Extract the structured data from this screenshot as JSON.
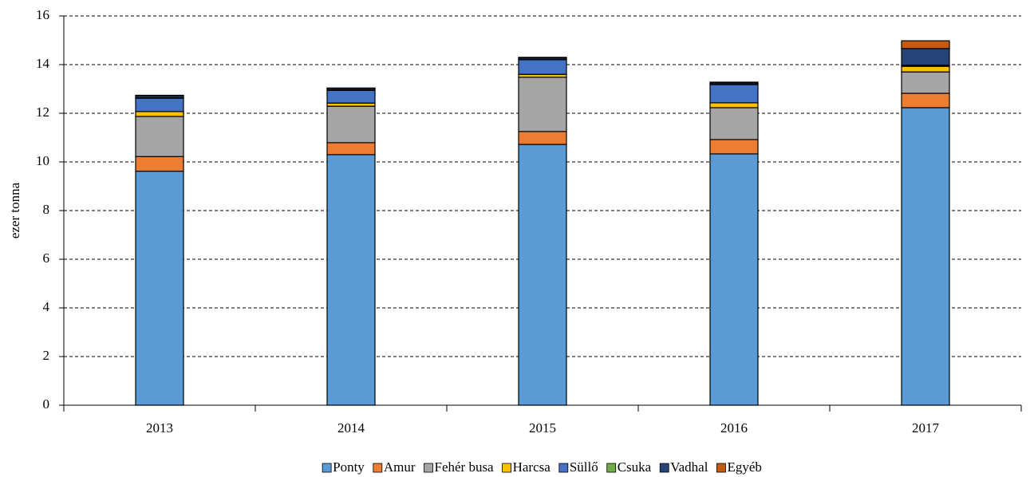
{
  "chart_data": {
    "type": "stacked_bar",
    "y_label": "ezer tonna",
    "categories": [
      "2013",
      "2014",
      "2015",
      "2016",
      "2017"
    ],
    "series": [
      {
        "name": "Ponty",
        "color": "#5b9bd5",
        "values": [
          9.62,
          10.3,
          10.72,
          10.33,
          12.23
        ]
      },
      {
        "name": "Amur",
        "color": "#ed7d31",
        "values": [
          0.6,
          0.49,
          0.53,
          0.59,
          0.59
        ]
      },
      {
        "name": "Fehér busa",
        "color": "#a5a5a5",
        "values": [
          1.65,
          1.5,
          2.23,
          1.31,
          0.88
        ]
      },
      {
        "name": "Harcsa",
        "color": "#ffc000",
        "values": [
          0.2,
          0.13,
          0.12,
          0.2,
          0.23
        ]
      },
      {
        "name": "Süllő",
        "color": "#4472c4",
        "values": [
          0.55,
          0.52,
          0.6,
          0.75,
          0.03
        ]
      },
      {
        "name": "Csuka",
        "color": "#70ad47",
        "values": [
          0.02,
          0.02,
          0.02,
          0.02,
          0.02
        ]
      },
      {
        "name": "Vadhal",
        "color": "#264478",
        "values": [
          0.08,
          0.06,
          0.06,
          0.05,
          0.68
        ]
      },
      {
        "name": "Egyéb",
        "color": "#c55a11",
        "values": [
          0.02,
          0.02,
          0.02,
          0.03,
          0.32
        ]
      }
    ],
    "ylim": [
      0,
      16
    ],
    "yticks": [
      0,
      2,
      4,
      6,
      8,
      10,
      12,
      14,
      16
    ],
    "grid": true,
    "legend": "bottom"
  }
}
